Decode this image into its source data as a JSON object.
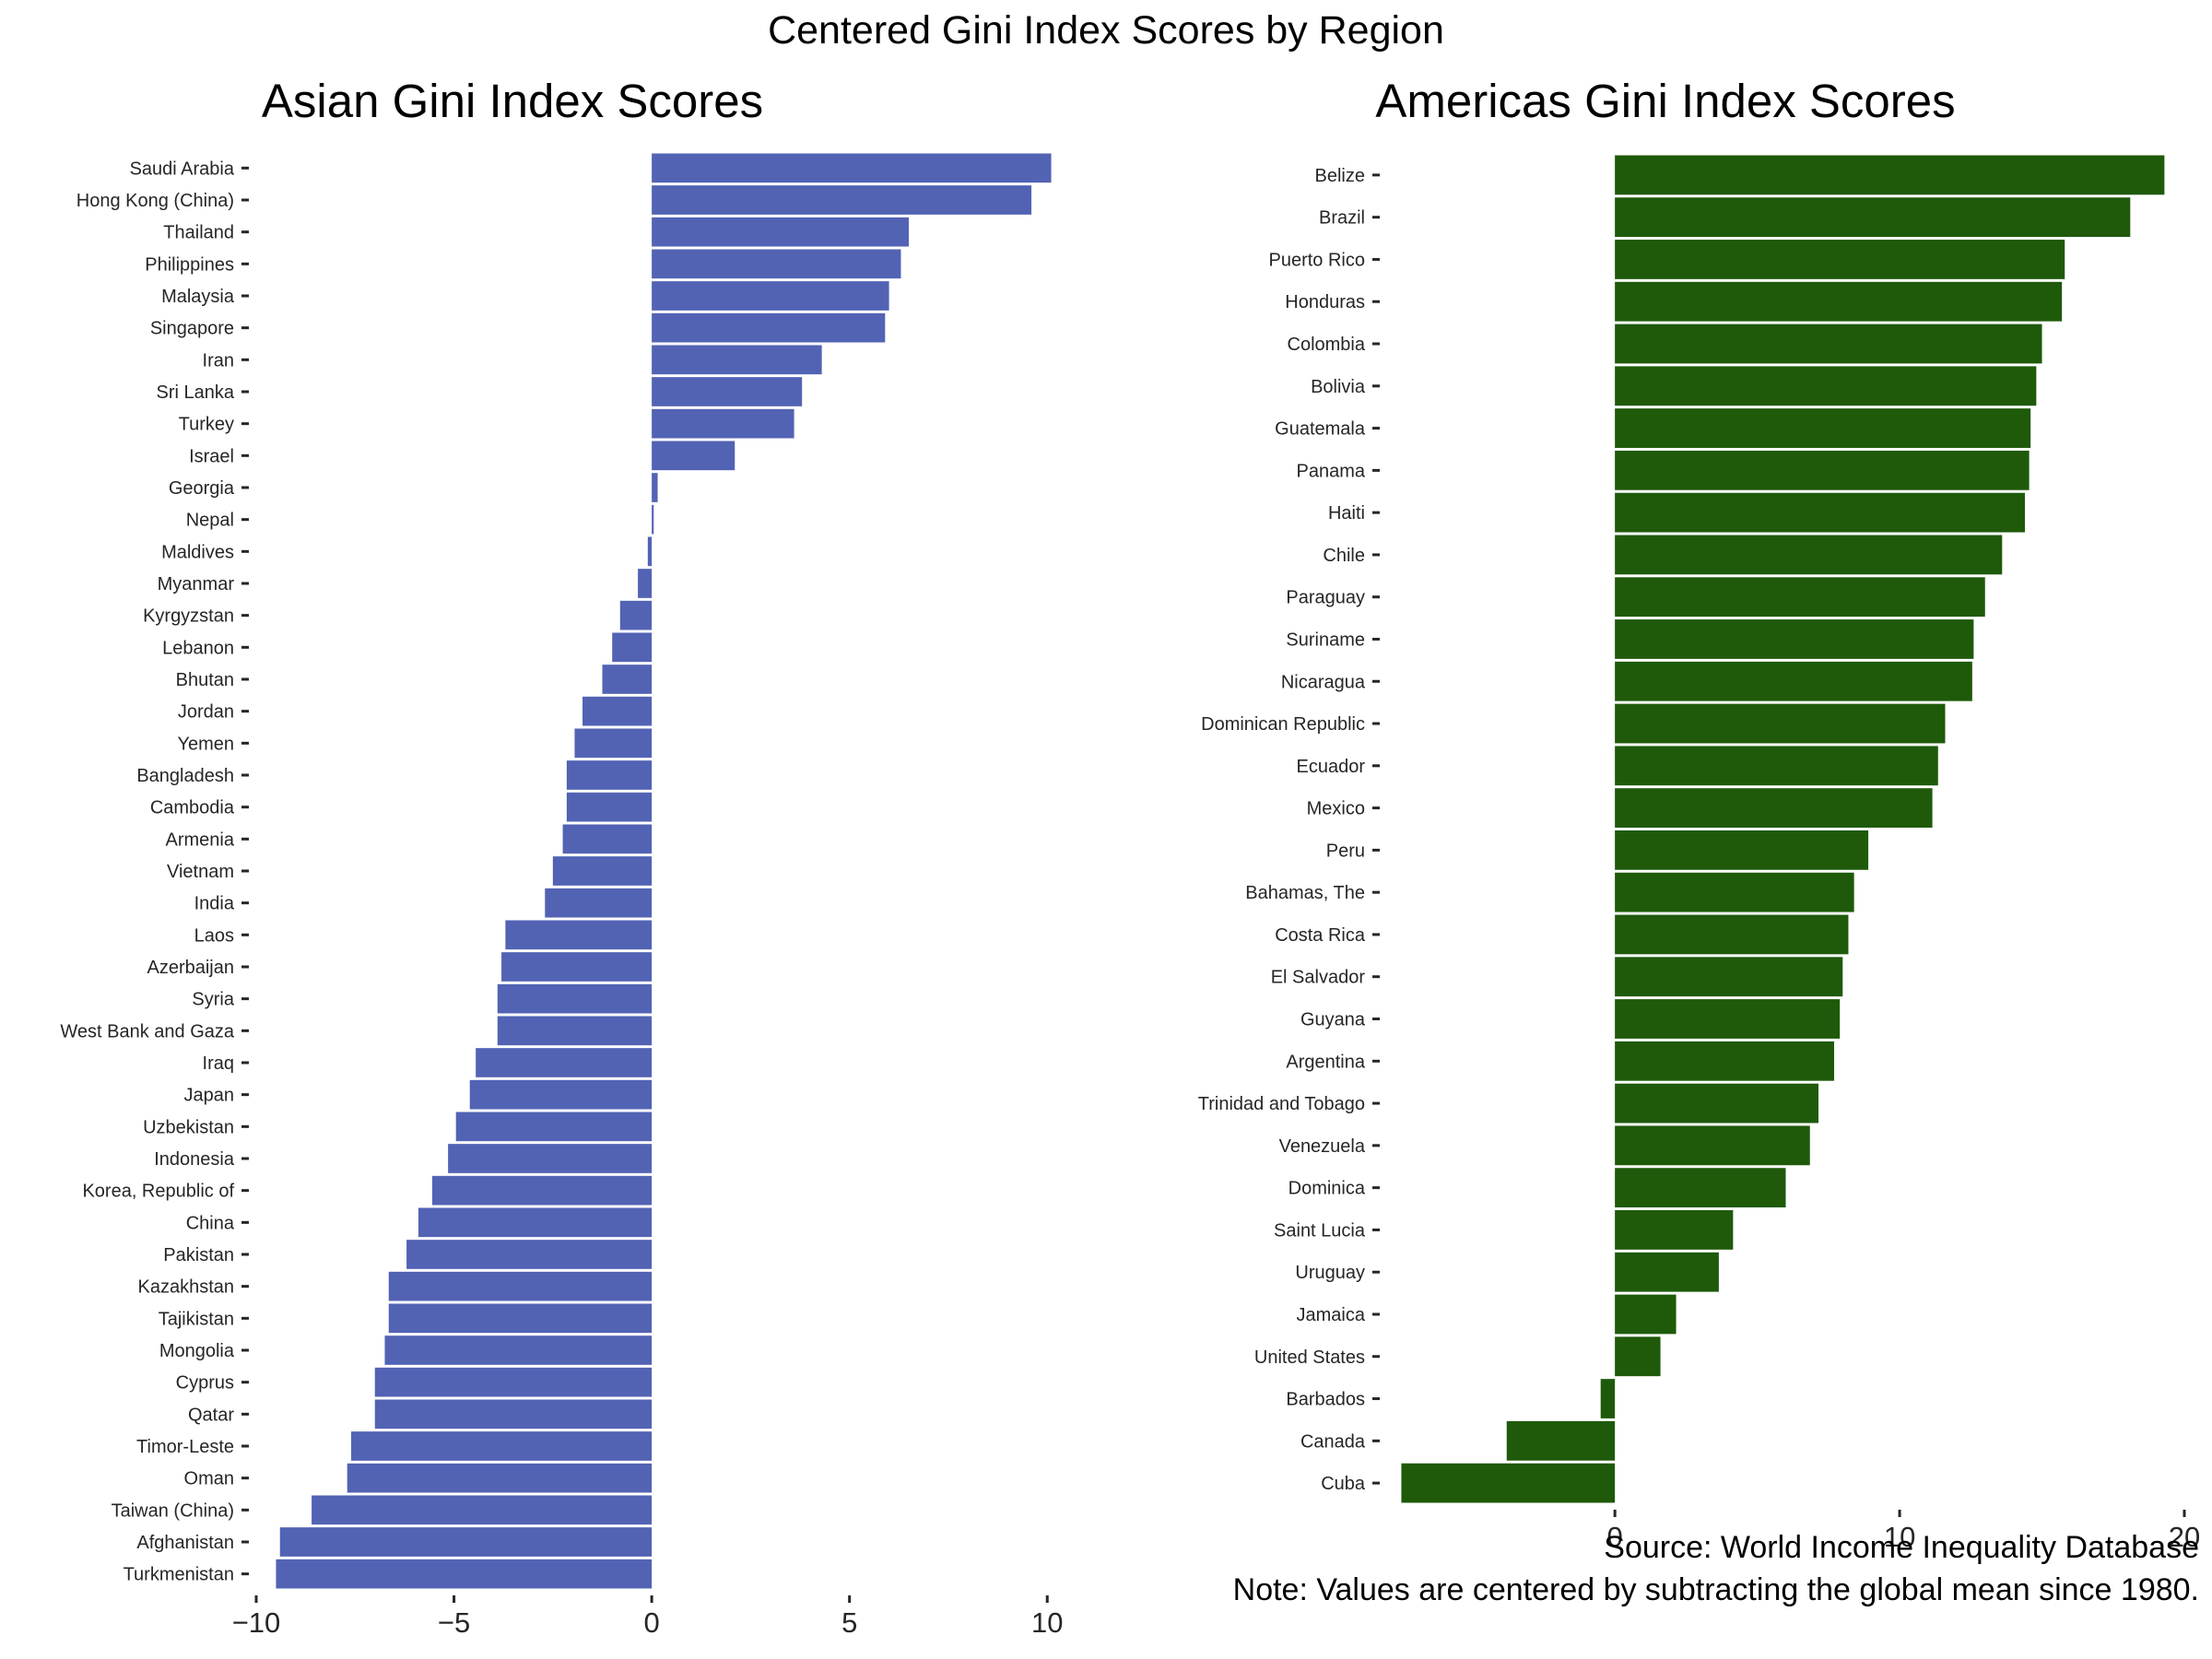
{
  "figure": {
    "suptitle": "Centered Gini Index Scores by Region",
    "source_note": "Source: World Income Inequality Database",
    "note": "Note: Values are centered by subtracting the global mean since 1980."
  },
  "chart_data": [
    {
      "type": "bar",
      "orientation": "horizontal",
      "title": "Asian Gini Index Scores",
      "xlabel": "",
      "ylabel": "",
      "xlim": [
        -10,
        10.6
      ],
      "xticks": [
        -10,
        -5,
        0,
        5,
        10
      ],
      "grid": false,
      "color": "#5263b4",
      "categories": [
        "Saudi Arabia",
        "Hong Kong (China)",
        "Thailand",
        "Philippines",
        "Malaysia",
        "Singapore",
        "Iran",
        "Sri Lanka",
        "Turkey",
        "Israel",
        "Georgia",
        "Nepal",
        "Maldives",
        "Myanmar",
        "Kyrgyzstan",
        "Lebanon",
        "Bhutan",
        "Jordan",
        "Yemen",
        "Bangladesh",
        "Cambodia",
        "Armenia",
        "Vietnam",
        "India",
        "Laos",
        "Azerbaijan",
        "Syria",
        "West Bank and Gaza",
        "Iraq",
        "Japan",
        "Uzbekistan",
        "Indonesia",
        "Korea, Republic of",
        "China",
        "Pakistan",
        "Kazakhstan",
        "Tajikistan",
        "Mongolia",
        "Cyprus",
        "Qatar",
        "Timor-Leste",
        "Oman",
        "Taiwan (China)",
        "Afghanistan",
        "Turkmenistan"
      ],
      "values": [
        10.1,
        9.6,
        6.5,
        6.3,
        6.0,
        5.9,
        4.3,
        3.8,
        3.6,
        2.1,
        0.15,
        0.05,
        -0.1,
        -0.35,
        -0.8,
        -1.0,
        -1.25,
        -1.75,
        -1.95,
        -2.15,
        -2.15,
        -2.25,
        -2.5,
        -2.7,
        -3.7,
        -3.8,
        -3.9,
        -3.9,
        -4.45,
        -4.6,
        -4.95,
        -5.15,
        -5.55,
        -5.9,
        -6.2,
        -6.65,
        -6.65,
        -6.75,
        -7.0,
        -7.0,
        -7.6,
        -7.7,
        -8.6,
        -9.4,
        -9.5
      ]
    },
    {
      "type": "bar",
      "orientation": "horizontal",
      "title": "Americas Gini Index Scores",
      "xlabel": "",
      "ylabel": "",
      "xlim": [
        -8,
        20
      ],
      "xticks": [
        0,
        10,
        20
      ],
      "grid": false,
      "color": "#1e5a0a",
      "categories": [
        "Belize",
        "Brazil",
        "Puerto Rico",
        "Honduras",
        "Colombia",
        "Bolivia",
        "Guatemala",
        "Panama",
        "Haiti",
        "Chile",
        "Paraguay",
        "Suriname",
        "Nicaragua",
        "Dominican Republic",
        "Ecuador",
        "Mexico",
        "Peru",
        "Bahamas, The",
        "Costa Rica",
        "El Salvador",
        "Guyana",
        "Argentina",
        "Trinidad and Tobago",
        "Venezuela",
        "Dominica",
        "Saint Lucia",
        "Uruguay",
        "Jamaica",
        "United States",
        "Barbados",
        "Canada",
        "Cuba"
      ],
      "values": [
        19.3,
        18.1,
        15.8,
        15.7,
        15.0,
        14.8,
        14.6,
        14.55,
        14.4,
        13.6,
        13.0,
        12.6,
        12.55,
        11.6,
        11.35,
        11.15,
        8.9,
        8.4,
        8.2,
        8.0,
        7.9,
        7.7,
        7.15,
        6.85,
        6.0,
        4.15,
        3.65,
        2.15,
        1.6,
        -0.5,
        -3.8,
        -7.5
      ]
    }
  ]
}
